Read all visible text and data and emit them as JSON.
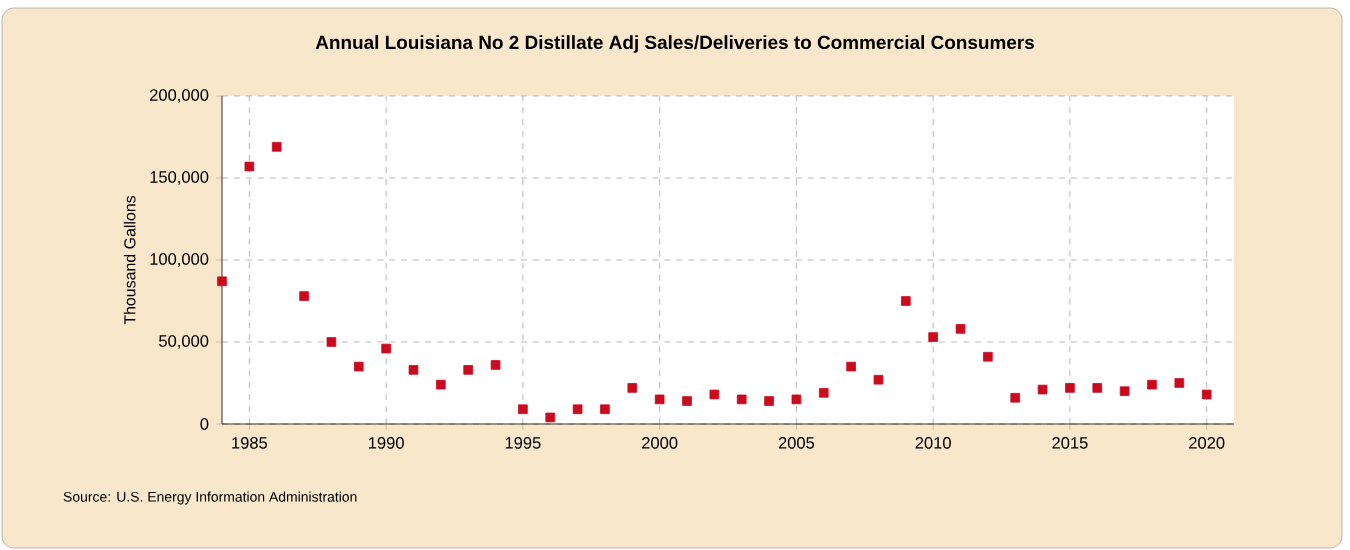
{
  "chart_data": {
    "type": "scatter",
    "title": "Annual Louisiana No 2 Distillate Adj Sales/Deliveries to Commercial Consumers",
    "ylabel": "Thousand Gallons",
    "annotations": [
      "Source: U.S. Energy Information Administration"
    ],
    "x": [
      1984,
      1985,
      1986,
      1987,
      1988,
      1989,
      1990,
      1991,
      1992,
      1993,
      1994,
      1995,
      1996,
      1997,
      1998,
      1999,
      2000,
      2001,
      2002,
      2003,
      2004,
      2005,
      2006,
      2007,
      2008,
      2009,
      2010,
      2011,
      2012,
      2013,
      2014,
      2015,
      2016,
      2017,
      2018,
      2019,
      2020
    ],
    "series": [
      {
        "color": "#cc0a1e",
        "values": [
          87000,
          157000,
          169000,
          78000,
          50000,
          35000,
          46000,
          33000,
          24000,
          33000,
          36000,
          9000,
          4000,
          9000,
          9000,
          22000,
          15000,
          14000,
          18000,
          15000,
          14000,
          15000,
          19000,
          35000,
          27000,
          75000,
          53000,
          58000,
          41000,
          16000,
          21000,
          22000,
          22000,
          20000,
          24000,
          25000,
          18000
        ]
      }
    ],
    "xlim": [
      1984,
      2021
    ],
    "ylim": [
      0,
      200000
    ],
    "xticks": [
      1985,
      1990,
      1995,
      2000,
      2005,
      2010,
      2015,
      2020
    ],
    "yticks": [
      0,
      {
        "value": 50000,
        "label": "50,000"
      },
      {
        "value": 100000,
        "label": "100,000"
      },
      {
        "value": 150000,
        "label": "150,000"
      },
      {
        "value": 200000,
        "label": "200,000"
      }
    ],
    "grid": true,
    "marker": "square"
  }
}
